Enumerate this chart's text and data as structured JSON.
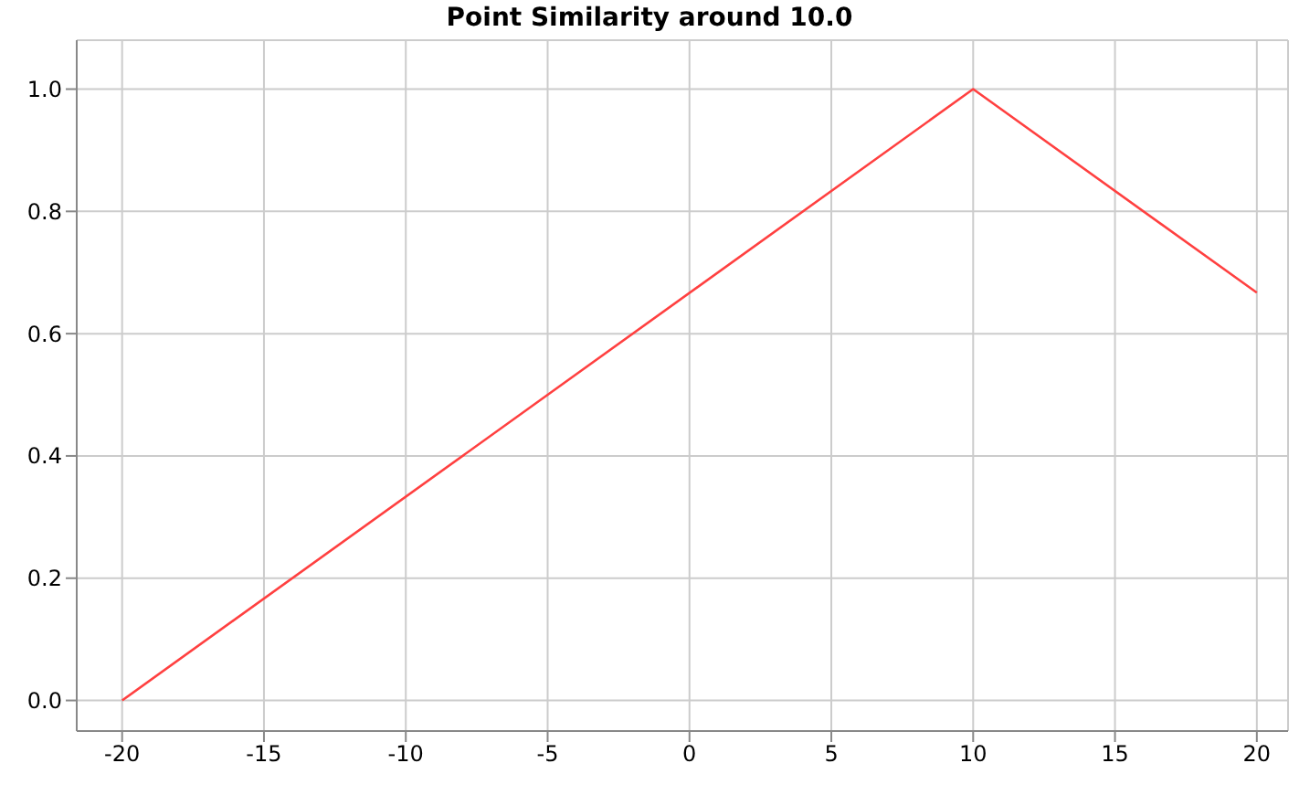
{
  "chart_data": {
    "type": "line",
    "title": "Point Similarity around 10.0",
    "x": [
      -20,
      10,
      20
    ],
    "series": [
      {
        "color": "#ff4040",
        "values": [
          0,
          1,
          0.667
        ]
      }
    ],
    "xlim": [
      -21.6,
      21.1
    ],
    "xticks": [
      -20,
      -15,
      -10,
      -5,
      0,
      5,
      10,
      15,
      20
    ],
    "ylim": [
      -0.05,
      1.08
    ],
    "yticks": [
      {
        "value": 0,
        "label": "0.0"
      },
      {
        "value": 0.2,
        "label": "0.2"
      },
      {
        "value": 0.4,
        "label": "0.4"
      },
      {
        "value": 0.6,
        "label": "0.6"
      },
      {
        "value": 0.8,
        "label": "0.8"
      },
      {
        "value": 1,
        "label": "1.0"
      }
    ],
    "grid": true,
    "marker": "none",
    "line_style": "solid"
  }
}
